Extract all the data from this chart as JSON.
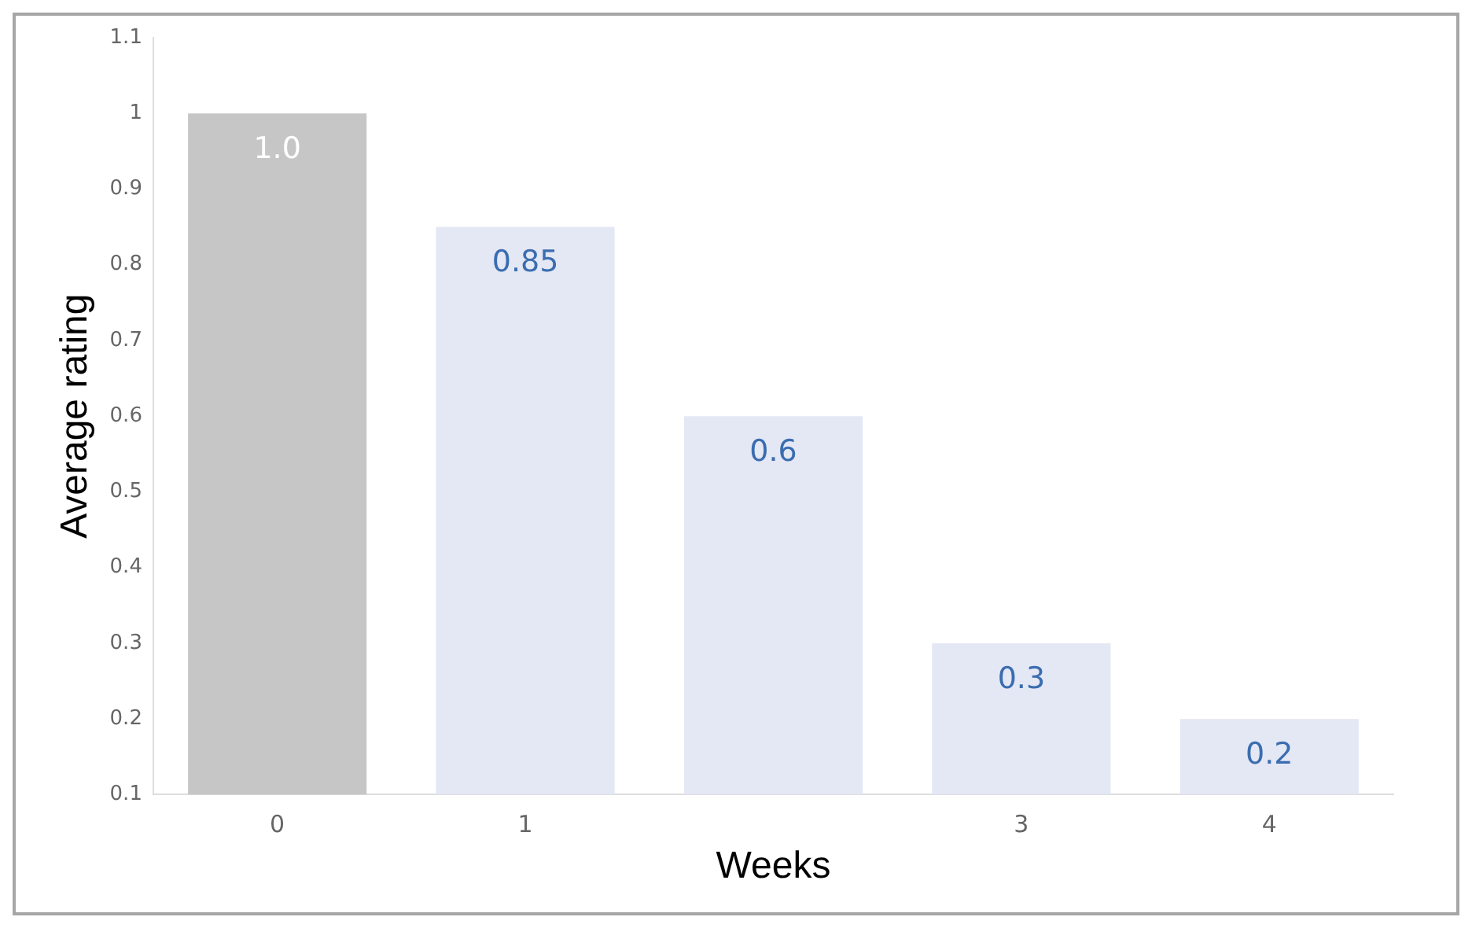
{
  "chart_data": {
    "type": "bar",
    "xlabel": "Weeks",
    "ylabel": "Average rating",
    "categories": [
      "0",
      "1",
      null,
      "3",
      "4"
    ],
    "values": [
      1.0,
      0.85,
      0.6,
      0.3,
      0.2
    ],
    "colors": [
      "#c6c6c6",
      "#e4e7f4",
      "#e4e7f4",
      "#e4e7f4",
      "#e4e7f4"
    ],
    "value_labels": [
      "1.0",
      "0.85",
      "0.6",
      "0.3",
      "0.2"
    ],
    "ylim": [
      0.1,
      1.1
    ],
    "yticks": [
      0.1,
      0.2,
      0.3,
      0.4,
      0.5,
      0.6,
      0.7,
      0.8,
      0.9,
      1,
      1.1
    ],
    "grid": false,
    "legend": false
  }
}
